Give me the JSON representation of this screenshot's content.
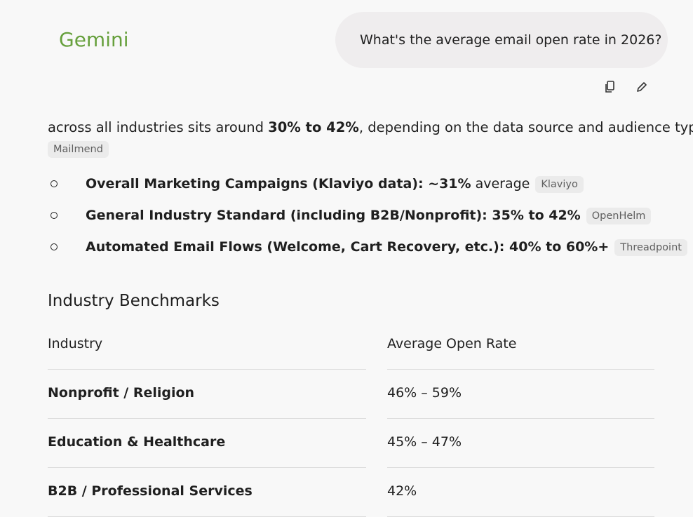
{
  "header": {
    "brand": "Gemini"
  },
  "user_message": {
    "text": "What's the average email open rate in 2026?"
  },
  "response": {
    "intro": {
      "parts": [
        "across all industries sits around ",
        "30% to 42%",
        ", depending on the data source and audience type:"
      ],
      "source": "Mailmend"
    },
    "bullets": [
      {
        "bold": "Overall Marketing Campaigns (Klaviyo data): ~31%",
        "rest": "average",
        "source": "Klaviyo"
      },
      {
        "bold": "General Industry Standard (including B2B/Nonprofit): 35% to 42%",
        "source": "OpenHelm"
      },
      {
        "bold": "Automated Email Flows (Welcome, Cart Recovery, etc.): 40% to 60%+",
        "source": "Threadpoint"
      }
    ],
    "section_title": "Industry Benchmarks",
    "table": {
      "columns": [
        "Industry",
        "Average Open Rate"
      ],
      "rows": [
        [
          "Nonprofit / Religion",
          "46% – 59%"
        ],
        [
          "Education & Healthcare",
          "45% – 47%"
        ],
        [
          "B2B / Professional Services",
          "42%"
        ]
      ]
    }
  }
}
